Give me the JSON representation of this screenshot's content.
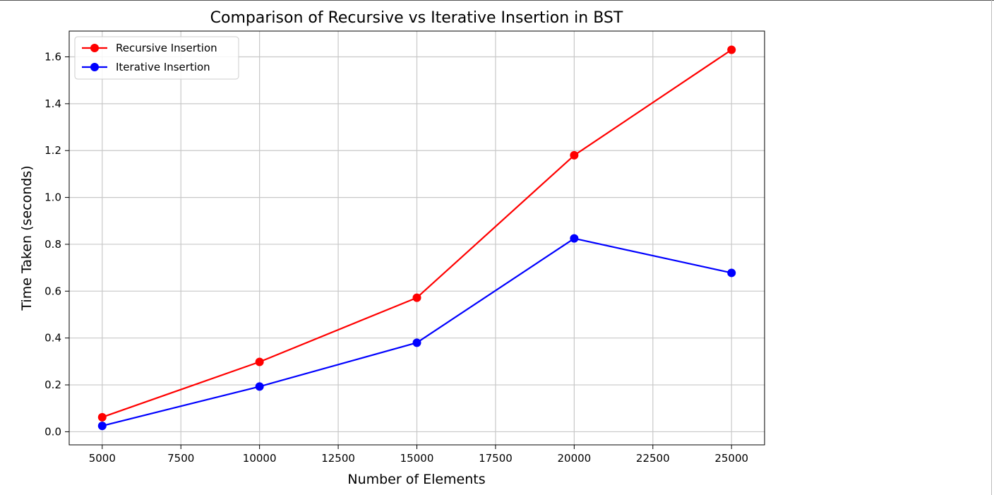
{
  "chart_data": {
    "type": "line",
    "title": "Comparison of Recursive vs Iterative Insertion in BST",
    "xlabel": "Number of Elements",
    "ylabel": "Time Taken (seconds)",
    "x": [
      5000,
      10000,
      15000,
      20000,
      25000
    ],
    "xlim": [
      3950,
      26050
    ],
    "ylim": [
      -0.056,
      1.71
    ],
    "xticks": [
      5000,
      7500,
      10000,
      12500,
      15000,
      17500,
      20000,
      22500,
      25000
    ],
    "yticks": [
      0.0,
      0.2,
      0.4,
      0.6,
      0.8,
      1.0,
      1.2,
      1.4,
      1.6
    ],
    "grid": true,
    "legend_position": "upper-left",
    "series": [
      {
        "name": "Recursive Insertion",
        "color": "#ff0000",
        "marker": "circle",
        "values": [
          0.062,
          0.298,
          0.572,
          1.18,
          1.63
        ]
      },
      {
        "name": "Iterative Insertion",
        "color": "#0000ff",
        "marker": "circle",
        "values": [
          0.025,
          0.193,
          0.38,
          0.825,
          0.678
        ]
      }
    ]
  }
}
